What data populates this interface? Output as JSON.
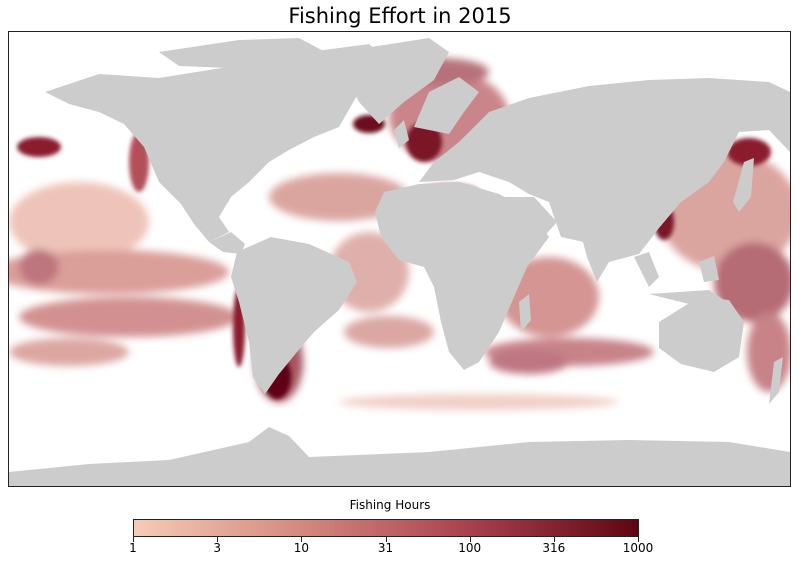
{
  "title": "Fishing Effort in 2015",
  "colorbar": {
    "label": "Fishing Hours",
    "ticks": [
      "1",
      "3",
      "10",
      "31",
      "100",
      "316",
      "1000"
    ],
    "min_color": "#f6cbb7",
    "max_color": "#5e0612"
  },
  "map": {
    "land_color": "#cccccc",
    "ocean_color": "#ffffff",
    "effort_colors": [
      "#f2c3b1",
      "#d98b80",
      "#b4505a",
      "#8a1e2f",
      "#5e0612"
    ]
  }
}
